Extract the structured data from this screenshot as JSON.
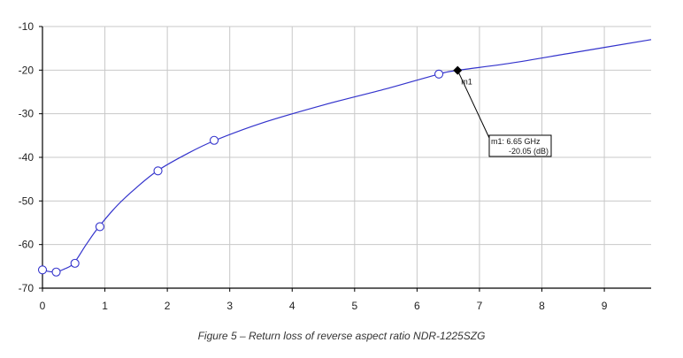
{
  "caption": "Figure 5 – Return loss of reverse aspect ratio NDR-1225SZG",
  "chart_data": {
    "type": "line",
    "xlim": [
      0,
      9.75
    ],
    "ylim": [
      -70,
      -10
    ],
    "x_ticks": [
      0,
      1,
      2,
      3,
      4,
      5,
      6,
      7,
      8,
      9
    ],
    "y_ticks": [
      -10,
      -20,
      -30,
      -40,
      -50,
      -60,
      -70
    ],
    "x_tick_labels": [
      "0",
      "1",
      "2",
      "3",
      "4",
      "5",
      "6",
      "7",
      "8",
      "9"
    ],
    "y_tick_labels": [
      "-10",
      "-20",
      "-30",
      "-40",
      "-50",
      "-60",
      "-70"
    ],
    "grid": true,
    "line_color": "#3333cc",
    "series": [
      {
        "x": [
          0.0,
          0.2,
          0.35,
          0.5,
          0.7,
          0.9,
          1.2,
          1.5,
          1.85,
          2.3,
          2.75,
          3.5,
          4.5,
          5.5,
          6.35,
          6.65,
          7.5,
          8.5,
          9.75
        ],
        "y": [
          -65.9,
          -66.3,
          -65.6,
          -64.3,
          -60.0,
          -56.0,
          -51.0,
          -47.0,
          -43.0,
          -39.3,
          -36.2,
          -32.2,
          -28.0,
          -24.3,
          -20.9,
          -20.05,
          -18.4,
          -16.0,
          -13.0
        ]
      }
    ],
    "markers": {
      "x": [
        0.0,
        0.22,
        0.52,
        0.92,
        1.85,
        2.75,
        6.35
      ],
      "y": [
        -65.8,
        -66.3,
        -64.3,
        -55.9,
        -43.1,
        -36.1,
        -20.9
      ]
    },
    "marker_m1": {
      "label": "m1",
      "x": 6.65,
      "y": -20.05,
      "box_line1": "m1: 6.65 GHz",
      "box_line2": "-20.05  (dB)"
    }
  }
}
